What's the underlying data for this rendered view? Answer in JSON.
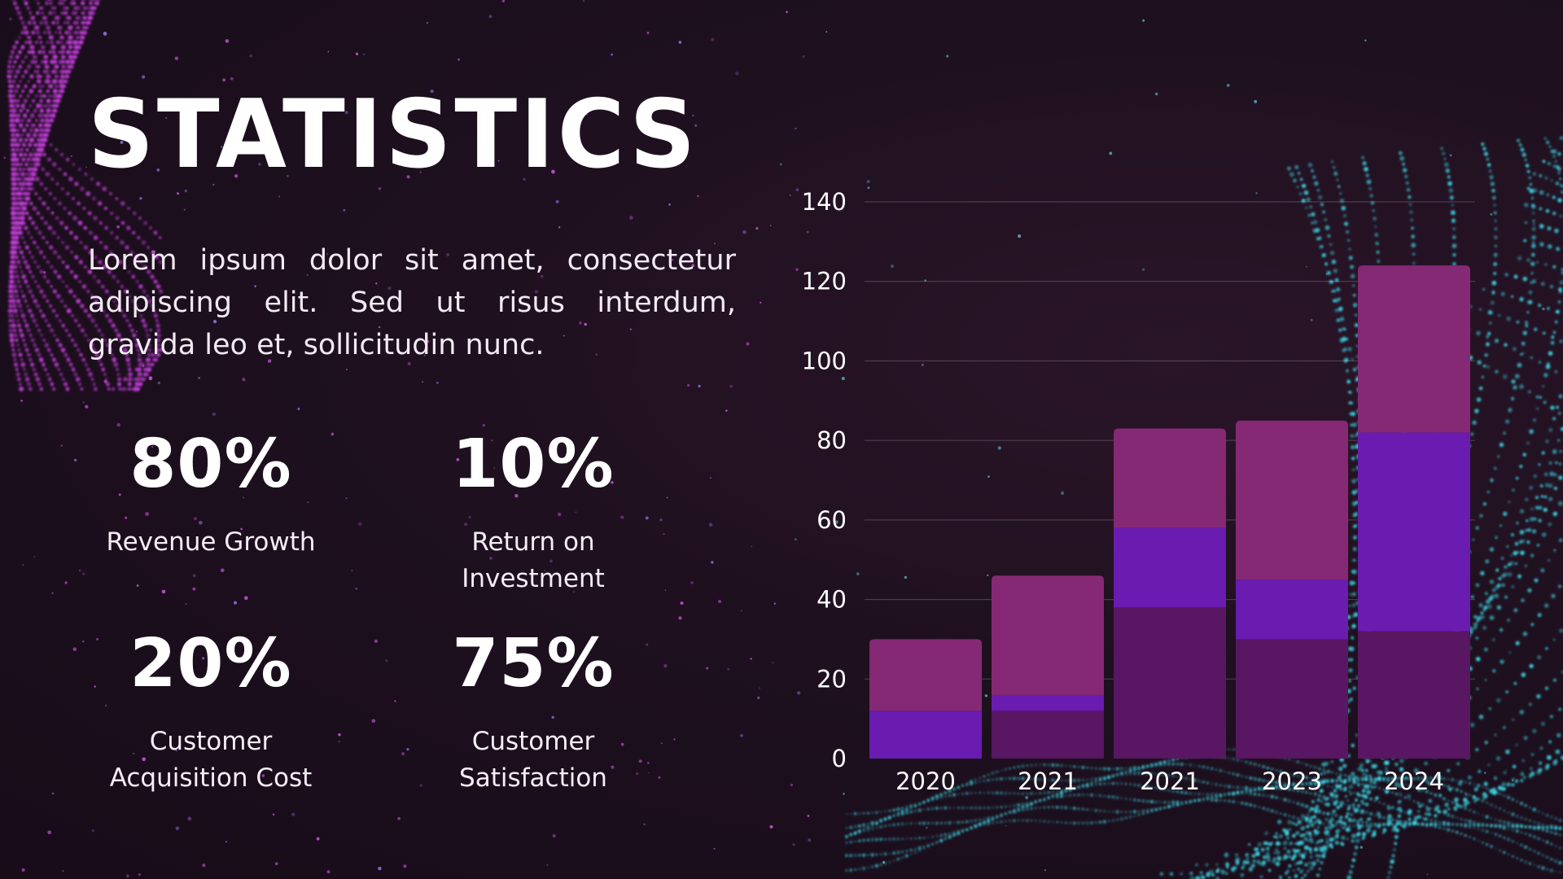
{
  "slide": {
    "title": "STATISTICS",
    "description": "Lorem ipsum dolor sit amet, consectetur adipiscing elit. Sed ut risus interdum, gravida leo et, sollicitudin nunc."
  },
  "stats": [
    {
      "value": "80%",
      "label": "Revenue Growth"
    },
    {
      "value": "10%",
      "label": "Return on Investment"
    },
    {
      "value": "20%",
      "label": "Customer Acquisition Cost"
    },
    {
      "value": "75%",
      "label": "Customer Satisfaction"
    }
  ],
  "colors": {
    "background": "#1c0f1d",
    "series_1": "#581663",
    "series_2": "#6a1bb0",
    "series_3": "#862975",
    "particles_left": "#c83fe0",
    "particles_right": "#3ee0ee"
  },
  "chart_data": {
    "type": "bar",
    "stacked": true,
    "categories": [
      "2020",
      "2021",
      "2021",
      "2023",
      "2024"
    ],
    "series": [
      {
        "values": [
          0,
          12,
          38,
          30,
          32
        ]
      },
      {
        "values": [
          12,
          4,
          20,
          15,
          50
        ]
      },
      {
        "values": [
          18,
          30,
          25,
          40,
          42
        ]
      }
    ],
    "ylim": [
      0,
      140
    ],
    "yticks": [
      0,
      20,
      40,
      60,
      80,
      100,
      120,
      140
    ],
    "grid": true,
    "legend": "none"
  }
}
